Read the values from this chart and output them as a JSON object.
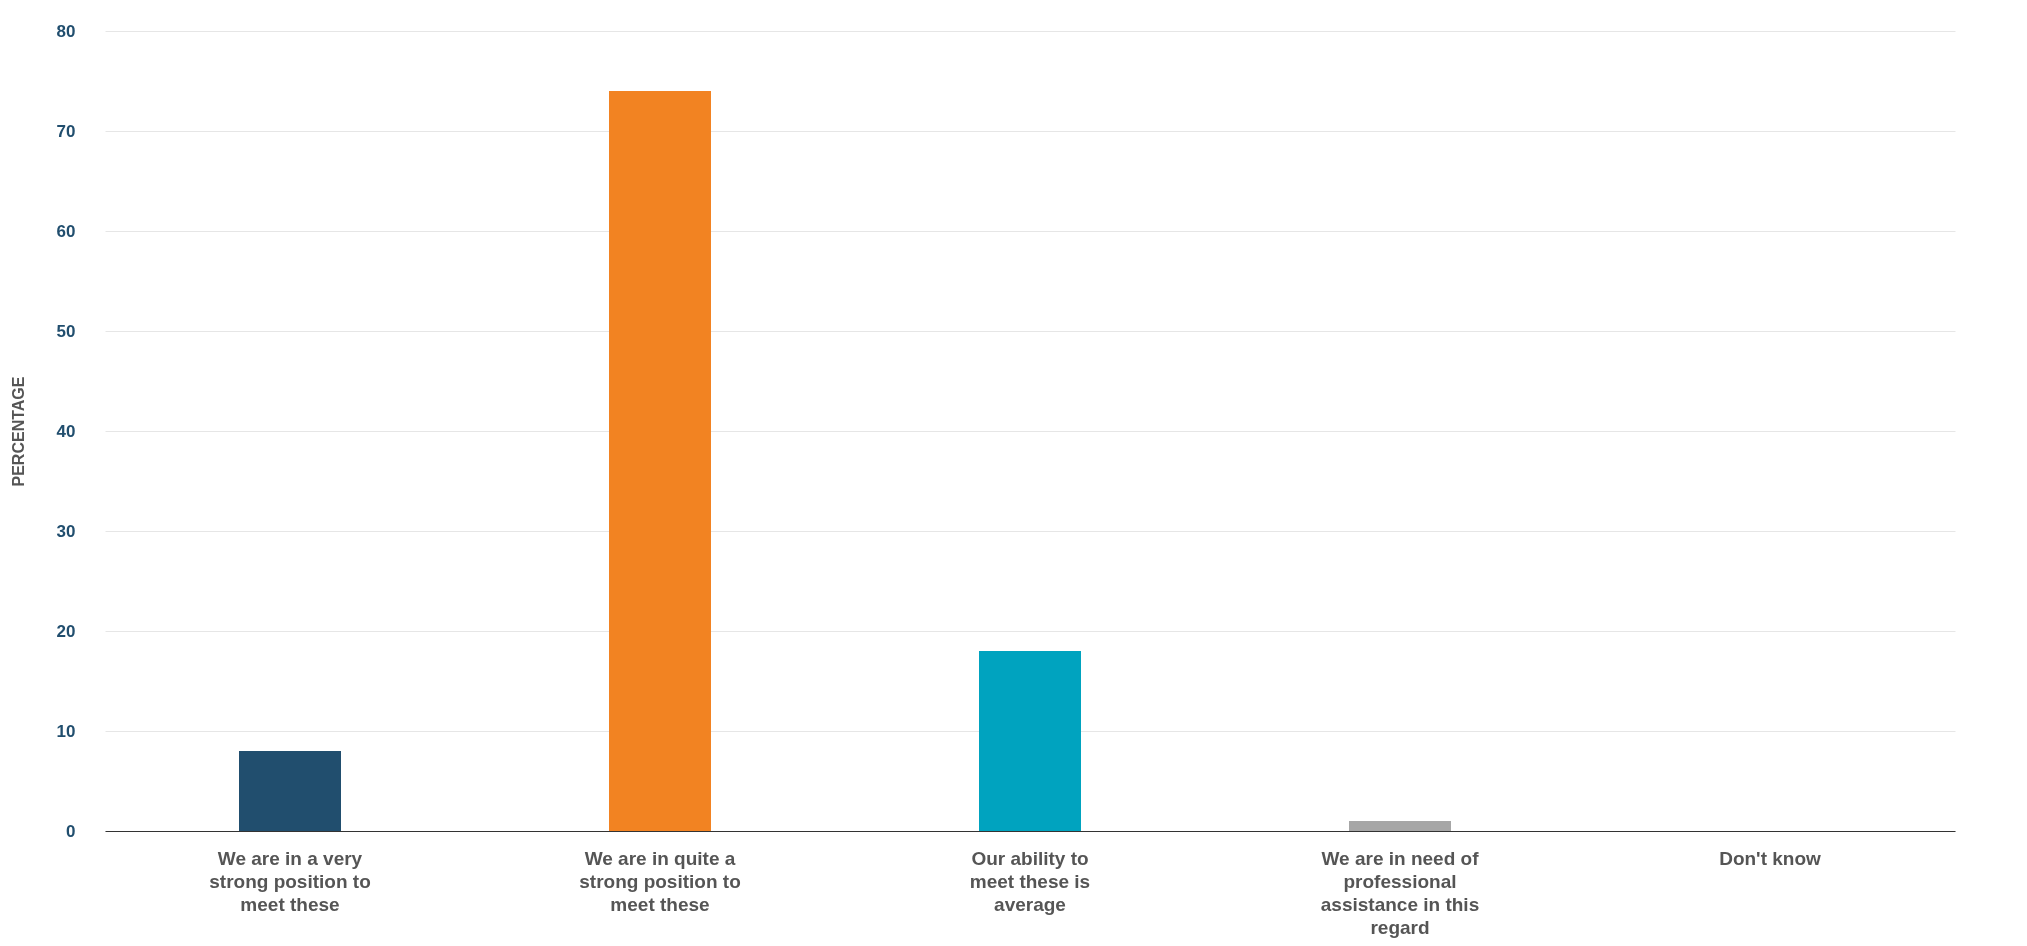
{
  "chart_data": {
    "type": "bar",
    "ylabel": "PERCENTAGE",
    "categories": [
      "We are in a very strong position to meet these",
      "We are in quite a strong position to meet these",
      "Our ability to meet these is average",
      "We are in need of professional assistance in this regard",
      "Don't know"
    ],
    "values": [
      8,
      74,
      18,
      1,
      0
    ],
    "colors": [
      "#214e6e",
      "#f28322",
      "#00a3bf",
      "#a6a6a6",
      "#a6a6a6"
    ],
    "ylim": [
      0,
      80
    ],
    "yticks": [
      0,
      10,
      20,
      30,
      40,
      50,
      60,
      70,
      80
    ],
    "grid": "y"
  }
}
